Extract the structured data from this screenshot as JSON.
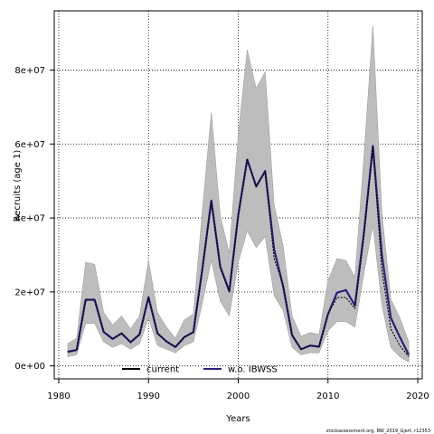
{
  "chart_data": {
    "type": "line",
    "xlabel": "Years",
    "ylabel": "Recruits (age 1)",
    "xlim": [
      1979.5,
      2020.5
    ],
    "ylim": [
      -3500000,
      96000000
    ],
    "x_ticks": [
      1980,
      1990,
      2000,
      2010,
      2020
    ],
    "x_tick_labels": [
      "1980",
      "1990",
      "2000",
      "2010",
      "2020"
    ],
    "y_ticks": [
      0,
      20000000,
      40000000,
      60000000,
      80000000
    ],
    "y_tick_labels": [
      "0e+00",
      "2e+07",
      "4e+07",
      "6e+07",
      "8e+07"
    ],
    "grid": "dotted",
    "legend_position": "bottom-center",
    "credit": "stockassessment.org, BW_2019_Gjert, r12353",
    "x": [
      1981,
      1982,
      1983,
      1984,
      1985,
      1986,
      1987,
      1988,
      1989,
      1990,
      1991,
      1992,
      1993,
      1994,
      1995,
      1996,
      1997,
      1998,
      1999,
      2000,
      2001,
      2002,
      2003,
      2004,
      2005,
      2006,
      2007,
      2008,
      2009,
      2010,
      2011,
      2012,
      2013,
      2014,
      2015,
      2016,
      2017,
      2018,
      2019
    ],
    "band": {
      "lower": [
        2500000,
        3000000,
        11500000,
        11500000,
        6500000,
        5000000,
        6000000,
        4500000,
        6000000,
        13000000,
        5500000,
        4500000,
        3500000,
        5500000,
        6500000,
        17000000,
        28500000,
        17500000,
        13500000,
        28000000,
        36500000,
        32000000,
        35000000,
        19000000,
        15000000,
        5000000,
        3000000,
        3500000,
        3500000,
        9500000,
        12000000,
        12000000,
        10500000,
        25000000,
        38000000,
        16500000,
        5000000,
        2500000,
        1000000
      ],
      "upper": [
        6000000,
        7500000,
        28000000,
        27500000,
        14500000,
        11000000,
        13500000,
        10000000,
        13500000,
        28500000,
        14500000,
        10500000,
        7500000,
        12500000,
        14000000,
        42000000,
        68500000,
        40500000,
        30500000,
        62500000,
        85500000,
        75000000,
        79500000,
        43500000,
        32500000,
        13500000,
        8000000,
        9000000,
        8500000,
        23000000,
        29000000,
        28500000,
        24000000,
        56500000,
        92000000,
        41500000,
        18000000,
        13000000,
        6500000
      ]
    },
    "series": [
      {
        "name": "current",
        "color": "#000000",
        "style": "dashed",
        "values": [
          3800000,
          4300000,
          17800000,
          17800000,
          9200000,
          7300000,
          8800000,
          6400000,
          8500000,
          18500000,
          8800000,
          6600000,
          5100000,
          7800000,
          9100000,
          26000000,
          44500000,
          26500000,
          20000000,
          40500000,
          56000000,
          48500000,
          52500000,
          29000000,
          22000000,
          8300000,
          4500000,
          5500000,
          5200000,
          14000000,
          18500000,
          18500000,
          15500000,
          35000000,
          59000000,
          26000000,
          10000000,
          5500000,
          2500000
        ]
      },
      {
        "name": "w.o. IBWSS",
        "color": "#2e1f7a",
        "style": "solid",
        "values": [
          3800000,
          4300000,
          17900000,
          17900000,
          9200000,
          7300000,
          8800000,
          6400000,
          8500000,
          18600000,
          8800000,
          6600000,
          5100000,
          7800000,
          9100000,
          26200000,
          44700000,
          26800000,
          20200000,
          40800000,
          55800000,
          48500000,
          52700000,
          31500000,
          21500000,
          8300000,
          4500000,
          5500000,
          5200000,
          14000000,
          19800000,
          20500000,
          16300000,
          36000000,
          59500000,
          30000000,
          13000000,
          7800000,
          3000000
        ]
      }
    ]
  }
}
